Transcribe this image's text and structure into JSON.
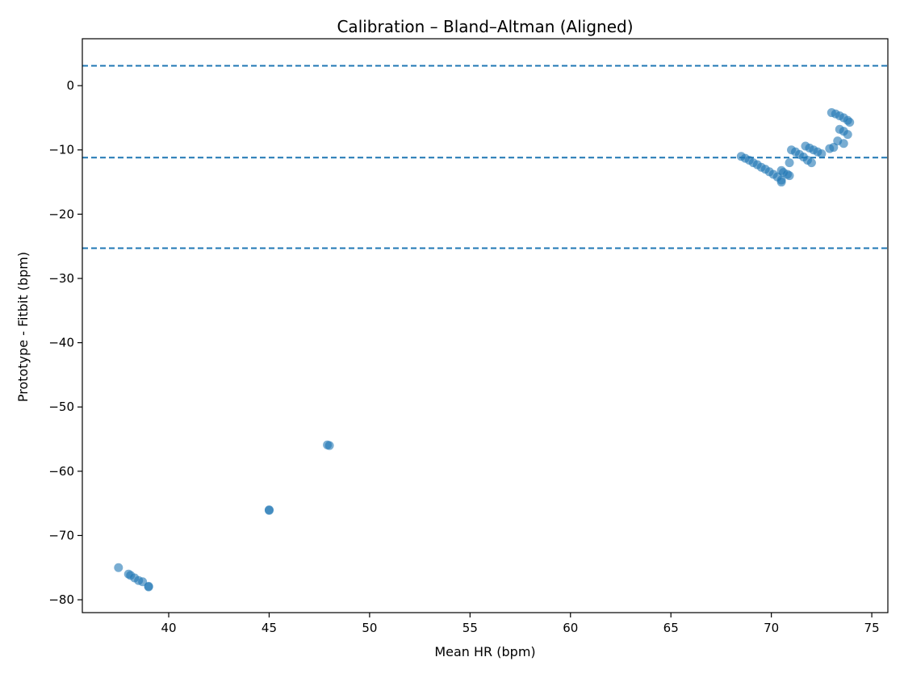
{
  "chart_data": {
    "type": "scatter",
    "title": "Calibration – Bland–Altman (Aligned)",
    "xlabel": "Mean HR (bpm)",
    "ylabel": "Prototype - Fitbit (bpm)",
    "xlim": [
      35.7,
      75.8
    ],
    "ylim": [
      -82,
      7.3
    ],
    "xticks": [
      40,
      45,
      50,
      55,
      60,
      65,
      70,
      75
    ],
    "yticks": [
      0,
      -10,
      -20,
      -30,
      -40,
      -50,
      -60,
      -70,
      -80
    ],
    "ytick_labels": [
      "0",
      "−10",
      "−20",
      "−30",
      "−40",
      "−50",
      "−60",
      "−70",
      "−80"
    ],
    "grid": false,
    "colors": {
      "points": "#1f77b4",
      "lines": "#1f77b4"
    },
    "reference_lines": [
      {
        "role": "upper-limit",
        "y": 3.1
      },
      {
        "role": "mean-difference",
        "y": -11.2
      },
      {
        "role": "lower-limit",
        "y": -25.3
      }
    ],
    "points": [
      {
        "x": 37.5,
        "y": -75.0
      },
      {
        "x": 38.0,
        "y": -76.0
      },
      {
        "x": 38.1,
        "y": -76.2
      },
      {
        "x": 38.3,
        "y": -76.6
      },
      {
        "x": 38.5,
        "y": -77.0
      },
      {
        "x": 38.7,
        "y": -77.2
      },
      {
        "x": 39.0,
        "y": -78.0
      },
      {
        "x": 39.0,
        "y": -77.9
      },
      {
        "x": 45.0,
        "y": -66.0
      },
      {
        "x": 45.0,
        "y": -66.1
      },
      {
        "x": 47.9,
        "y": -55.9
      },
      {
        "x": 48.0,
        "y": -56.0
      },
      {
        "x": 68.5,
        "y": -11.0
      },
      {
        "x": 68.7,
        "y": -11.3
      },
      {
        "x": 68.9,
        "y": -11.6
      },
      {
        "x": 69.1,
        "y": -12.0
      },
      {
        "x": 69.3,
        "y": -12.3
      },
      {
        "x": 69.5,
        "y": -12.7
      },
      {
        "x": 69.7,
        "y": -13.0
      },
      {
        "x": 69.9,
        "y": -13.4
      },
      {
        "x": 70.1,
        "y": -13.8
      },
      {
        "x": 70.3,
        "y": -14.2
      },
      {
        "x": 70.5,
        "y": -14.7
      },
      {
        "x": 70.5,
        "y": -15.0
      },
      {
        "x": 70.5,
        "y": -13.2
      },
      {
        "x": 70.6,
        "y": -13.5
      },
      {
        "x": 70.8,
        "y": -13.8
      },
      {
        "x": 70.9,
        "y": -14.0
      },
      {
        "x": 70.9,
        "y": -12.0
      },
      {
        "x": 71.0,
        "y": -10.0
      },
      {
        "x": 71.2,
        "y": -10.3
      },
      {
        "x": 71.4,
        "y": -10.7
      },
      {
        "x": 71.6,
        "y": -11.1
      },
      {
        "x": 71.8,
        "y": -11.6
      },
      {
        "x": 72.0,
        "y": -12.0
      },
      {
        "x": 71.7,
        "y": -9.4
      },
      {
        "x": 71.9,
        "y": -9.7
      },
      {
        "x": 72.1,
        "y": -10.0
      },
      {
        "x": 72.3,
        "y": -10.3
      },
      {
        "x": 72.5,
        "y": -10.6
      },
      {
        "x": 72.9,
        "y": -9.8
      },
      {
        "x": 73.1,
        "y": -9.6
      },
      {
        "x": 73.0,
        "y": -4.2
      },
      {
        "x": 73.2,
        "y": -4.4
      },
      {
        "x": 73.4,
        "y": -4.7
      },
      {
        "x": 73.6,
        "y": -5.0
      },
      {
        "x": 73.8,
        "y": -5.4
      },
      {
        "x": 73.9,
        "y": -5.7
      },
      {
        "x": 73.4,
        "y": -6.8
      },
      {
        "x": 73.6,
        "y": -7.1
      },
      {
        "x": 73.8,
        "y": -7.6
      },
      {
        "x": 73.3,
        "y": -8.6
      },
      {
        "x": 73.6,
        "y": -9.0
      }
    ]
  }
}
